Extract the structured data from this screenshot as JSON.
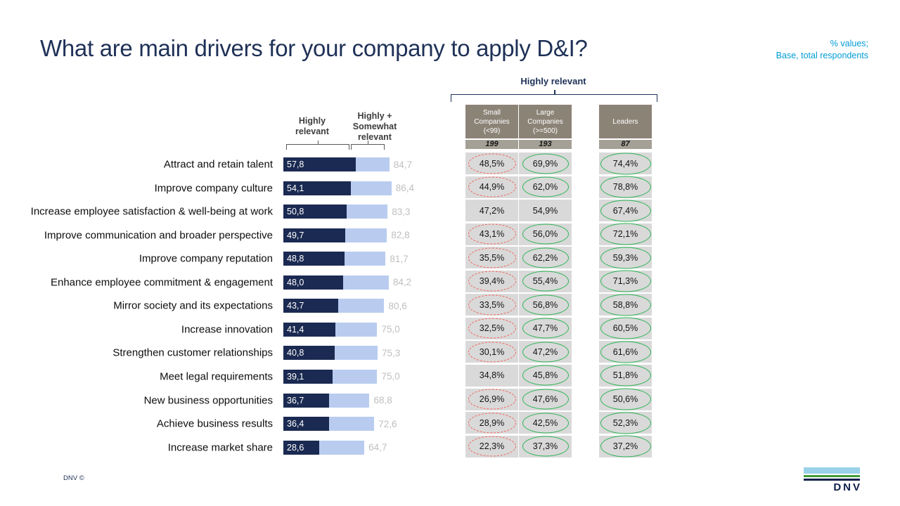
{
  "slide": {
    "title": "What are main drivers for your company to apply D&I?",
    "note_line1": "% values;",
    "note_line2": "Base, total respondents",
    "copyright": "DNV ©",
    "logo_text": "DNV"
  },
  "chart_data": {
    "type": "bar",
    "orientation": "horizontal",
    "title": "What are main drivers for your company to apply D&I?",
    "categories": [
      "Attract and retain talent",
      "Improve company culture",
      "Increase employee satisfaction & well-being at work",
      "Improve communication and broader perspective",
      "Improve company reputation",
      "Enhance employee commitment & engagement",
      "Mirror society and its expectations",
      "Increase innovation",
      "Strengthen customer relationships",
      "Meet legal requirements",
      "New business opportunities",
      "Achieve business results",
      "Increase market share"
    ],
    "series": [
      {
        "name": "Highly relevant",
        "color": "#1B2A52",
        "values": [
          57.8,
          54.1,
          50.8,
          49.7,
          48.8,
          48.0,
          43.7,
          41.4,
          40.8,
          39.1,
          36.7,
          36.4,
          28.6
        ]
      },
      {
        "name": "Highly + Somewhat relevant",
        "color": "#B9CCF0",
        "values": [
          84.7,
          86.4,
          83.3,
          82.8,
          81.7,
          84.2,
          80.6,
          75.0,
          75.3,
          75.0,
          68.8,
          72.6,
          64.7
        ]
      }
    ],
    "series_cumulative": true,
    "xlim": [
      0,
      90
    ],
    "xlabel": "",
    "ylabel": "",
    "grid": false,
    "value_labels": "decimal comma, one digit"
  },
  "comparison_table": {
    "bracket_label": "Highly relevant",
    "columns": [
      {
        "label": "Small Companies (<99)",
        "base": "199"
      },
      {
        "label": "Large Companies (>=500)",
        "base": "193"
      },
      {
        "label": "Leaders",
        "base": "87"
      }
    ],
    "rows": [
      {
        "values": [
          "48,5%",
          "69,9%",
          "74,4%"
        ],
        "marks": [
          "red",
          "green",
          "green"
        ]
      },
      {
        "values": [
          "44,9%",
          "62,0%",
          "78,8%"
        ],
        "marks": [
          "red",
          "green",
          "green"
        ]
      },
      {
        "values": [
          "47,2%",
          "54,9%",
          "67,4%"
        ],
        "marks": [
          "none",
          "none",
          "green"
        ]
      },
      {
        "values": [
          "43,1%",
          "56,0%",
          "72,1%"
        ],
        "marks": [
          "red",
          "green",
          "green"
        ]
      },
      {
        "values": [
          "35,5%",
          "62,2%",
          "59,3%"
        ],
        "marks": [
          "red",
          "green",
          "green"
        ]
      },
      {
        "values": [
          "39,4%",
          "55,4%",
          "71,3%"
        ],
        "marks": [
          "red",
          "green",
          "green"
        ]
      },
      {
        "values": [
          "33,5%",
          "56,8%",
          "58,8%"
        ],
        "marks": [
          "red",
          "green",
          "green"
        ]
      },
      {
        "values": [
          "32,5%",
          "47,7%",
          "60,5%"
        ],
        "marks": [
          "red",
          "green",
          "green"
        ]
      },
      {
        "values": [
          "30,1%",
          "47,2%",
          "61,6%"
        ],
        "marks": [
          "red",
          "green",
          "green"
        ]
      },
      {
        "values": [
          "34,8%",
          "45,8%",
          "51,8%"
        ],
        "marks": [
          "none",
          "green",
          "green"
        ]
      },
      {
        "values": [
          "26,9%",
          "47,6%",
          "50,6%"
        ],
        "marks": [
          "red",
          "green",
          "green"
        ]
      },
      {
        "values": [
          "28,9%",
          "42,5%",
          "52,3%"
        ],
        "marks": [
          "red",
          "green",
          "green"
        ]
      },
      {
        "values": [
          "22,3%",
          "37,3%",
          "37,2%"
        ],
        "marks": [
          "red",
          "green",
          "green"
        ]
      }
    ]
  },
  "colors": {
    "title_navy": "#1F3157",
    "note_blue": "#009CD6",
    "bar_dark": "#1B2A52",
    "bar_light": "#B9CCF0",
    "bar_value_gray": "#BFBFBF",
    "table_header_bg": "#8C8377",
    "table_base_bg": "#A5A096",
    "table_cell_bg": "#D9D9D9",
    "highlight_red": "#F4645A",
    "highlight_green": "#2FB457",
    "logo_light_blue": "#99D2E8",
    "logo_green": "#3F9C35",
    "logo_navy": "#0F204B"
  }
}
